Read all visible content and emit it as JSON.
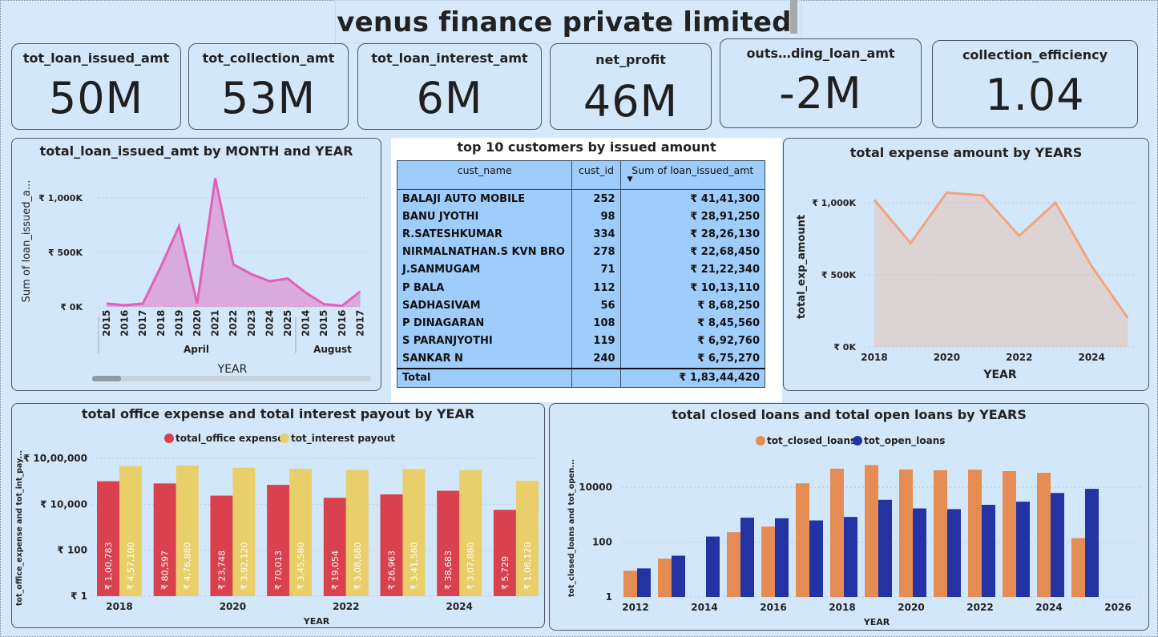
{
  "page_title": "venus finance private limited",
  "kpis": [
    {
      "label": "tot_loan_issued_amt",
      "value": "50M"
    },
    {
      "label": "tot_collection_amt",
      "value": "53M"
    },
    {
      "label": "tot_loan_interest_amt",
      "value": "6M"
    },
    {
      "label": "net_profit",
      "value": "46M"
    },
    {
      "label": "outs…ding_loan_amt",
      "value": "-2M"
    },
    {
      "label": "collection_efficiency",
      "value": "1.04"
    }
  ],
  "colors": {
    "pink_area": "#e062b8",
    "salmon_area": "#f1a47f",
    "red_bar": "#d9414e",
    "yellow_bar": "#e8cf6a",
    "orange_bar": "#e48c53",
    "navy_bar": "#2433a3",
    "card_bg": "#d3e7fb",
    "table_bg": "#9fcdfb"
  },
  "customers_table": {
    "title": "top 10 customers by issued amount",
    "columns": [
      "cust_name",
      "cust_id",
      "Sum of loan_issued_amt"
    ],
    "rows": [
      [
        "BALAJI AUTO MOBILE",
        "252",
        "₹ 41,41,300"
      ],
      [
        "BANU JYOTHI",
        "98",
        "₹ 28,91,250"
      ],
      [
        "R.SATESHKUMAR",
        "334",
        "₹ 28,26,130"
      ],
      [
        "NIRMALNATHAN.S KVN BRO",
        "278",
        "₹ 22,68,450"
      ],
      [
        "J.SANMUGAM",
        "71",
        "₹ 21,22,340"
      ],
      [
        "P BALA",
        "112",
        "₹ 10,13,110"
      ],
      [
        "SADHASIVAM",
        "56",
        "₹ 8,68,250"
      ],
      [
        "P DINAGARAN",
        "108",
        "₹ 8,45,560"
      ],
      [
        "S PARANJYOTHI",
        "119",
        "₹ 6,92,760"
      ],
      [
        "SANKAR N",
        "240",
        "₹ 6,75,270"
      ]
    ],
    "total_label": "Total",
    "total_value": "₹ 1,83,44,420"
  },
  "chart_data": [
    {
      "id": "loan_issued_by_month_year",
      "type": "area",
      "title": "total_loan_issued_amt by MONTH and YEAR",
      "xlabel": "YEAR",
      "ylabel": "Sum of loan_issued_a...",
      "month_groups": [
        "April",
        "August"
      ],
      "categories": [
        "2015",
        "2016",
        "2017",
        "2018",
        "2019",
        "2020",
        "2021",
        "2022",
        "2023",
        "2024",
        "2025",
        "2014",
        "2015",
        "2016",
        "2017"
      ],
      "values": [
        30,
        15,
        30,
        370,
        740,
        30,
        1180,
        390,
        300,
        235,
        260,
        130,
        25,
        10,
        140
      ],
      "y_ticks": [
        "₹ 0K",
        "₹ 500K",
        "₹ 1,000K"
      ],
      "ylim": [
        0,
        1250
      ]
    },
    {
      "id": "expense_by_years",
      "type": "area",
      "title": "total expense amount by YEARS",
      "xlabel": "YEAR",
      "ylabel": "total_exp_amount",
      "x": [
        2018,
        2019,
        2020,
        2021,
        2022,
        2023,
        2024,
        2025
      ],
      "values": [
        1020,
        720,
        1070,
        1050,
        770,
        1000,
        560,
        200
      ],
      "x_ticks": [
        "2018",
        "2020",
        "2022",
        "2024"
      ],
      "y_ticks": [
        "₹ 0K",
        "₹ 500K",
        "₹ 1,000K"
      ],
      "ylim": [
        0,
        1100
      ]
    },
    {
      "id": "office_expense_interest_by_year",
      "type": "bar",
      "title": "total office expense and total interest payout by YEAR",
      "xlabel": "YEAR",
      "ylabel": "tot_office_expense and tot_int_pay...",
      "scale": "log",
      "categories": [
        "2018",
        "2019",
        "2020",
        "2021",
        "2022",
        "2023",
        "2024",
        "2025"
      ],
      "x_ticks": [
        "2018",
        "2020",
        "2022",
        "2024"
      ],
      "y_ticks": [
        "₹ 1",
        "₹ 100",
        "₹ 10,000",
        "₹ 10,00,000"
      ],
      "series": [
        {
          "name": "total_office expense",
          "values": [
            100783,
            80597,
            23748,
            70013,
            19054,
            26963,
            38683,
            5729
          ],
          "labels": [
            "₹ 1,00,783",
            "₹ 80,597",
            "₹ 23,748",
            "₹ 70,013",
            "₹ 19,054",
            "₹ 26,963",
            "₹ 38,683",
            "₹ 5,729"
          ]
        },
        {
          "name": "tot_interest payout",
          "values": [
            457100,
            476880,
            392120,
            345580,
            308680,
            341580,
            307880,
            106120
          ],
          "labels": [
            "₹ 4,57,100",
            "₹ 4,76,880",
            "₹ 3,92,120",
            "₹ 3,45,580",
            "₹ 3,08,680",
            "₹ 3,41,580",
            "₹ 3,07,880",
            "₹ 1,06,120"
          ]
        }
      ]
    },
    {
      "id": "closed_open_loans_by_years",
      "type": "bar",
      "title": "total closed loans and total open loans by YEARS",
      "xlabel": "YEAR",
      "ylabel": "tot_closed_loans and tot_open...",
      "scale": "log",
      "categories": [
        "2012",
        "2013",
        "2014",
        "2015",
        "2016",
        "2017",
        "2018",
        "2019",
        "2020",
        "2021",
        "2022",
        "2023",
        "2024",
        "2025"
      ],
      "x_ticks": [
        "2012",
        "2014",
        "2016",
        "2018",
        "2020",
        "2022",
        "2024",
        "2026"
      ],
      "y_ticks": [
        "1",
        "100",
        "10000"
      ],
      "series": [
        {
          "name": "tot_closed_loans",
          "values": [
            9,
            25,
            null,
            230,
            370,
            14000,
            48000,
            65000,
            45000,
            42000,
            44000,
            39000,
            34000,
            140
          ]
        },
        {
          "name": "tot_open_loans",
          "values": [
            11,
            32,
            160,
            780,
            740,
            620,
            830,
            3500,
            1700,
            1600,
            2300,
            3000,
            6200,
            8800
          ]
        }
      ]
    }
  ]
}
